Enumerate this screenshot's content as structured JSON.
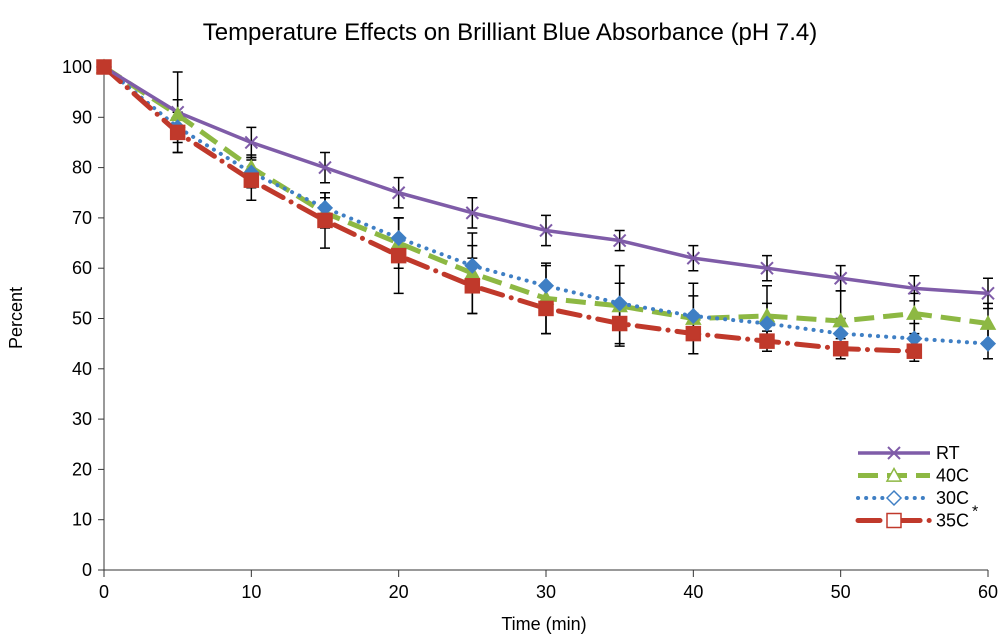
{
  "chart_data": {
    "type": "line",
    "title": "Temperature Effects on Brilliant Blue Absorbance (pH 7.4)",
    "xlabel": "Time (min)",
    "ylabel": "Percent",
    "xlim": [
      0,
      60
    ],
    "ylim": [
      0,
      100
    ],
    "x_ticks": [
      "0",
      "10",
      "20",
      "30",
      "40",
      "50",
      "60"
    ],
    "y_ticks": [
      "0",
      "10",
      "20",
      "30",
      "40",
      "50",
      "60",
      "70",
      "80",
      "90",
      "100"
    ],
    "grid": false,
    "legend_position": "bottom-right",
    "legend_note": "*",
    "series": [
      {
        "name": "RT",
        "color": "#7f5ca8",
        "marker": "x",
        "x": [
          0,
          5,
          10,
          15,
          20,
          25,
          30,
          35,
          40,
          45,
          50,
          55,
          60
        ],
        "values": [
          100,
          91,
          85,
          80,
          75,
          71,
          67.5,
          65.5,
          62,
          60,
          58,
          56,
          55
        ],
        "errors": [
          0,
          8,
          3,
          3,
          3,
          3,
          3,
          2,
          2.5,
          2.5,
          2.5,
          2.5,
          3
        ]
      },
      {
        "name": "40C",
        "color": "#8db843",
        "marker": "triangle",
        "x": [
          0,
          5,
          10,
          15,
          20,
          25,
          30,
          35,
          40,
          45,
          50,
          55,
          60
        ],
        "values": [
          100,
          90.5,
          80,
          71,
          65,
          59,
          54,
          52.5,
          50,
          50.5,
          49.5,
          51,
          49
        ],
        "errors": [
          0,
          3,
          2.5,
          3,
          5,
          8,
          7,
          8,
          7,
          6,
          6,
          4,
          4
        ]
      },
      {
        "name": "30C",
        "color": "#3f7fc4",
        "marker": "diamond",
        "x": [
          0,
          5,
          10,
          15,
          20,
          25,
          30,
          35,
          40,
          45,
          50,
          55,
          60
        ],
        "values": [
          100,
          88,
          79,
          72,
          66,
          60.5,
          56.5,
          53,
          50.5,
          49,
          47,
          46,
          45
        ],
        "errors": [
          0,
          3,
          3,
          3,
          4,
          4,
          4,
          4,
          4,
          4,
          3,
          3,
          3
        ]
      },
      {
        "name": "35C",
        "color": "#c0392b",
        "marker": "square",
        "x": [
          0,
          5,
          10,
          15,
          20,
          25,
          30,
          35,
          40,
          45,
          50,
          55
        ],
        "values": [
          100,
          87,
          77.5,
          69.5,
          62.5,
          56.5,
          52,
          49,
          47,
          45.5,
          44,
          43.5
        ],
        "errors": [
          0,
          4,
          4,
          5.5,
          7.5,
          5.5,
          5,
          4,
          4,
          2,
          2,
          2
        ]
      }
    ]
  }
}
